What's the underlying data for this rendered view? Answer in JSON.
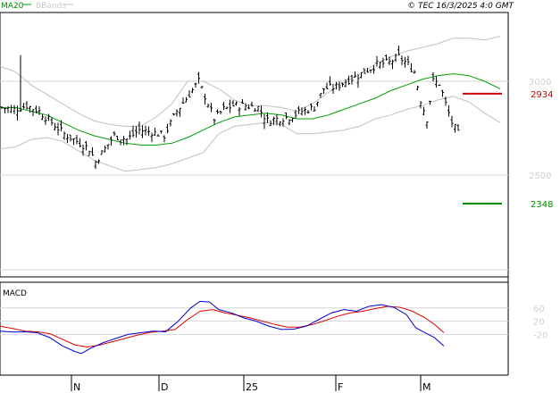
{
  "header": {
    "legend_ma": "MA20",
    "legend_bb": "BBands",
    "copyright": "© TEC 16/3/2025 4:0 GMT"
  },
  "colors": {
    "candles": "#000000",
    "ma20": "#00a000",
    "bands": "#c0c0c0",
    "macd": "#0000cc",
    "signal": "#e00000",
    "resistance": "#cc0000",
    "support": "#008800",
    "grid": "#d6d6d6"
  },
  "chart_data": {
    "type": "ohlc",
    "price_axis": {
      "ticks": [
        3000,
        2500
      ],
      "tick_labels": [
        "3000",
        "2500"
      ]
    },
    "levels": [
      {
        "label": "2934",
        "value": 2934,
        "color": "#cc0000"
      },
      {
        "label": "2348",
        "value": 2348,
        "color": "#008800"
      }
    ],
    "x_labels": [
      "N",
      "D",
      "25",
      "F",
      "M"
    ],
    "price": {
      "ma20": [
        [
          0,
          2860
        ],
        [
          5,
          2860
        ],
        [
          10,
          2840
        ],
        [
          15,
          2820
        ],
        [
          20,
          2780
        ],
        [
          25,
          2740
        ],
        [
          30,
          2710
        ],
        [
          35,
          2690
        ],
        [
          40,
          2670
        ],
        [
          45,
          2660
        ],
        [
          50,
          2660
        ],
        [
          55,
          2670
        ],
        [
          60,
          2700
        ],
        [
          65,
          2740
        ],
        [
          70,
          2780
        ],
        [
          75,
          2810
        ],
        [
          80,
          2820
        ],
        [
          85,
          2830
        ],
        [
          90,
          2820
        ],
        [
          95,
          2800
        ],
        [
          100,
          2800
        ],
        [
          105,
          2820
        ],
        [
          110,
          2850
        ],
        [
          115,
          2880
        ],
        [
          120,
          2910
        ],
        [
          125,
          2950
        ],
        [
          130,
          2980
        ],
        [
          135,
          3010
        ],
        [
          140,
          3030
        ],
        [
          145,
          3040
        ],
        [
          150,
          3030
        ],
        [
          155,
          3000
        ],
        [
          160,
          2960
        ]
      ],
      "bb_upper": [
        [
          0,
          3080
        ],
        [
          5,
          3050
        ],
        [
          10,
          2980
        ],
        [
          15,
          2930
        ],
        [
          20,
          2880
        ],
        [
          25,
          2830
        ],
        [
          30,
          2790
        ],
        [
          35,
          2770
        ],
        [
          40,
          2760
        ],
        [
          45,
          2760
        ],
        [
          50,
          2810
        ],
        [
          55,
          2880
        ],
        [
          60,
          3000
        ],
        [
          65,
          3000
        ],
        [
          70,
          2960
        ],
        [
          75,
          2900
        ],
        [
          80,
          2870
        ],
        [
          85,
          2870
        ],
        [
          90,
          2860
        ],
        [
          95,
          2840
        ],
        [
          100,
          2880
        ],
        [
          105,
          2940
        ],
        [
          110,
          2990
        ],
        [
          115,
          3040
        ],
        [
          120,
          3090
        ],
        [
          125,
          3130
        ],
        [
          130,
          3160
        ],
        [
          135,
          3180
        ],
        [
          140,
          3200
        ],
        [
          145,
          3230
        ],
        [
          150,
          3230
        ],
        [
          155,
          3220
        ],
        [
          160,
          3240
        ]
      ],
      "bb_lower": [
        [
          0,
          2640
        ],
        [
          5,
          2650
        ],
        [
          10,
          2690
        ],
        [
          15,
          2700
        ],
        [
          20,
          2680
        ],
        [
          25,
          2630
        ],
        [
          30,
          2580
        ],
        [
          35,
          2550
        ],
        [
          40,
          2520
        ],
        [
          45,
          2530
        ],
        [
          50,
          2540
        ],
        [
          55,
          2560
        ],
        [
          60,
          2590
        ],
        [
          65,
          2620
        ],
        [
          70,
          2720
        ],
        [
          75,
          2760
        ],
        [
          80,
          2770
        ],
        [
          85,
          2780
        ],
        [
          90,
          2770
        ],
        [
          95,
          2720
        ],
        [
          100,
          2720
        ],
        [
          105,
          2730
        ],
        [
          110,
          2740
        ],
        [
          115,
          2760
        ],
        [
          120,
          2800
        ],
        [
          125,
          2820
        ],
        [
          130,
          2850
        ],
        [
          135,
          2870
        ],
        [
          140,
          2900
        ],
        [
          145,
          2920
        ],
        [
          150,
          2890
        ],
        [
          155,
          2830
        ],
        [
          160,
          2780
        ]
      ],
      "ohlc_anchors": [
        [
          0,
          2860
        ],
        [
          4,
          2850
        ],
        [
          8,
          2870
        ],
        [
          12,
          2840
        ],
        [
          16,
          2780
        ],
        [
          20,
          2720
        ],
        [
          24,
          2680
        ],
        [
          28,
          2640
        ],
        [
          30,
          2570
        ],
        [
          33,
          2640
        ],
        [
          36,
          2710
        ],
        [
          40,
          2690
        ],
        [
          44,
          2740
        ],
        [
          48,
          2730
        ],
        [
          52,
          2710
        ],
        [
          56,
          2840
        ],
        [
          60,
          2930
        ],
        [
          63,
          3000
        ],
        [
          66,
          2880
        ],
        [
          68,
          2800
        ],
        [
          71,
          2850
        ],
        [
          74,
          2870
        ],
        [
          78,
          2870
        ],
        [
          82,
          2860
        ],
        [
          85,
          2790
        ],
        [
          88,
          2800
        ],
        [
          92,
          2810
        ],
        [
          96,
          2840
        ],
        [
          100,
          2860
        ],
        [
          103,
          2960
        ],
        [
          107,
          2970
        ],
        [
          110,
          3000
        ],
        [
          114,
          3030
        ],
        [
          117,
          3060
        ],
        [
          120,
          3090
        ],
        [
          124,
          3100
        ],
        [
          127,
          3130
        ],
        [
          130,
          3090
        ],
        [
          132,
          3050
        ],
        [
          134,
          2900
        ],
        [
          136,
          2800
        ],
        [
          138,
          3000
        ],
        [
          140,
          2990
        ],
        [
          142,
          2880
        ],
        [
          144,
          2780
        ],
        [
          146,
          2720
        ]
      ]
    },
    "macd": {
      "axis_ticks": [
        60,
        20,
        -20
      ],
      "axis_tick_labels": [
        "60",
        "20",
        "-20"
      ],
      "title": "MACD",
      "macd_line": [
        [
          0,
          -10
        ],
        [
          4,
          -13
        ],
        [
          8,
          -12
        ],
        [
          12,
          -15
        ],
        [
          16,
          -30
        ],
        [
          20,
          -55
        ],
        [
          24,
          -72
        ],
        [
          26,
          -78
        ],
        [
          29,
          -62
        ],
        [
          33,
          -45
        ],
        [
          37,
          -32
        ],
        [
          41,
          -20
        ],
        [
          45,
          -15
        ],
        [
          49,
          -10
        ],
        [
          53,
          -12
        ],
        [
          57,
          20
        ],
        [
          61,
          60
        ],
        [
          64,
          80
        ],
        [
          67,
          78
        ],
        [
          70,
          55
        ],
        [
          74,
          45
        ],
        [
          78,
          30
        ],
        [
          82,
          20
        ],
        [
          86,
          5
        ],
        [
          90,
          -5
        ],
        [
          94,
          -4
        ],
        [
          98,
          5
        ],
        [
          102,
          25
        ],
        [
          106,
          45
        ],
        [
          110,
          55
        ],
        [
          114,
          50
        ],
        [
          118,
          65
        ],
        [
          122,
          70
        ],
        [
          126,
          62
        ],
        [
          130,
          40
        ],
        [
          133,
          0
        ],
        [
          136,
          -15
        ],
        [
          139,
          -30
        ],
        [
          142,
          -55
        ]
      ],
      "signal_line": [
        [
          0,
          5
        ],
        [
          4,
          -2
        ],
        [
          8,
          -10
        ],
        [
          12,
          -12
        ],
        [
          16,
          -18
        ],
        [
          20,
          -35
        ],
        [
          24,
          -52
        ],
        [
          28,
          -58
        ],
        [
          32,
          -52
        ],
        [
          36,
          -42
        ],
        [
          40,
          -32
        ],
        [
          44,
          -22
        ],
        [
          48,
          -14
        ],
        [
          52,
          -10
        ],
        [
          56,
          -5
        ],
        [
          60,
          25
        ],
        [
          64,
          50
        ],
        [
          68,
          55
        ],
        [
          72,
          45
        ],
        [
          76,
          38
        ],
        [
          80,
          30
        ],
        [
          84,
          20
        ],
        [
          88,
          10
        ],
        [
          92,
          2
        ],
        [
          96,
          2
        ],
        [
          100,
          10
        ],
        [
          104,
          22
        ],
        [
          108,
          35
        ],
        [
          112,
          45
        ],
        [
          116,
          50
        ],
        [
          120,
          58
        ],
        [
          124,
          65
        ],
        [
          128,
          62
        ],
        [
          132,
          50
        ],
        [
          136,
          30
        ],
        [
          139,
          10
        ],
        [
          142,
          -15
        ]
      ]
    }
  }
}
